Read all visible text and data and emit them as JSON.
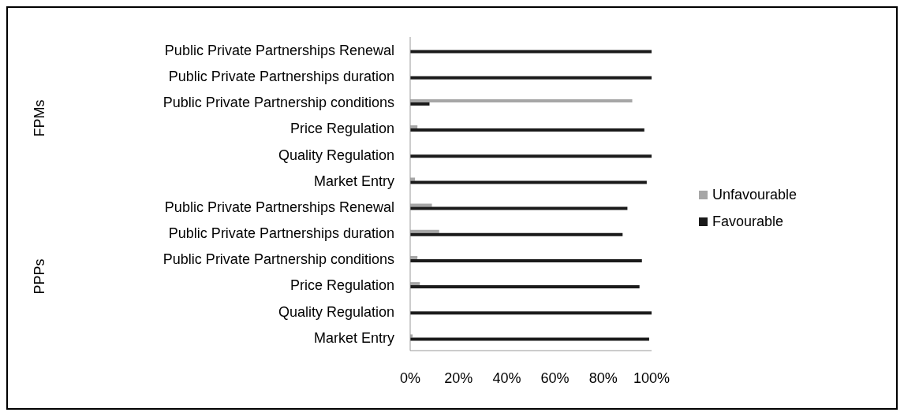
{
  "chart_data": {
    "type": "bar",
    "orientation": "horizontal",
    "categories": [
      "Public Private Partnerships Renewal",
      "Public Private Partnerships duration",
      "Public Private Partnership conditions",
      "Price Regulation",
      "Quality Regulation",
      "Market Entry",
      "Public Private Partnerships Renewal",
      "Public Private Partnerships duration",
      "Public Private Partnership conditions",
      "Price Regulation",
      "Quality Regulation",
      "Market Entry"
    ],
    "series": [
      {
        "name": "Unfavourable",
        "color": "#a6a6a6",
        "values": [
          0,
          0,
          92,
          3,
          0,
          2,
          9,
          12,
          3,
          4,
          0,
          1
        ]
      },
      {
        "name": "Favourable",
        "color": "#1a1a1a",
        "values": [
          100,
          100,
          8,
          97,
          100,
          98,
          90,
          88,
          96,
          95,
          100,
          99
        ]
      }
    ],
    "xlim": [
      0,
      100
    ],
    "xticks": [
      {
        "value": 0,
        "label": "0%"
      },
      {
        "value": 20,
        "label": "20%"
      },
      {
        "value": 40,
        "label": "40%"
      },
      {
        "value": 60,
        "label": "60%"
      },
      {
        "value": 80,
        "label": "80%"
      },
      {
        "value": 100,
        "label": "100%"
      }
    ],
    "annotations": [
      "FPMs",
      "PPPs"
    ],
    "legend": "right",
    "grid": false
  }
}
